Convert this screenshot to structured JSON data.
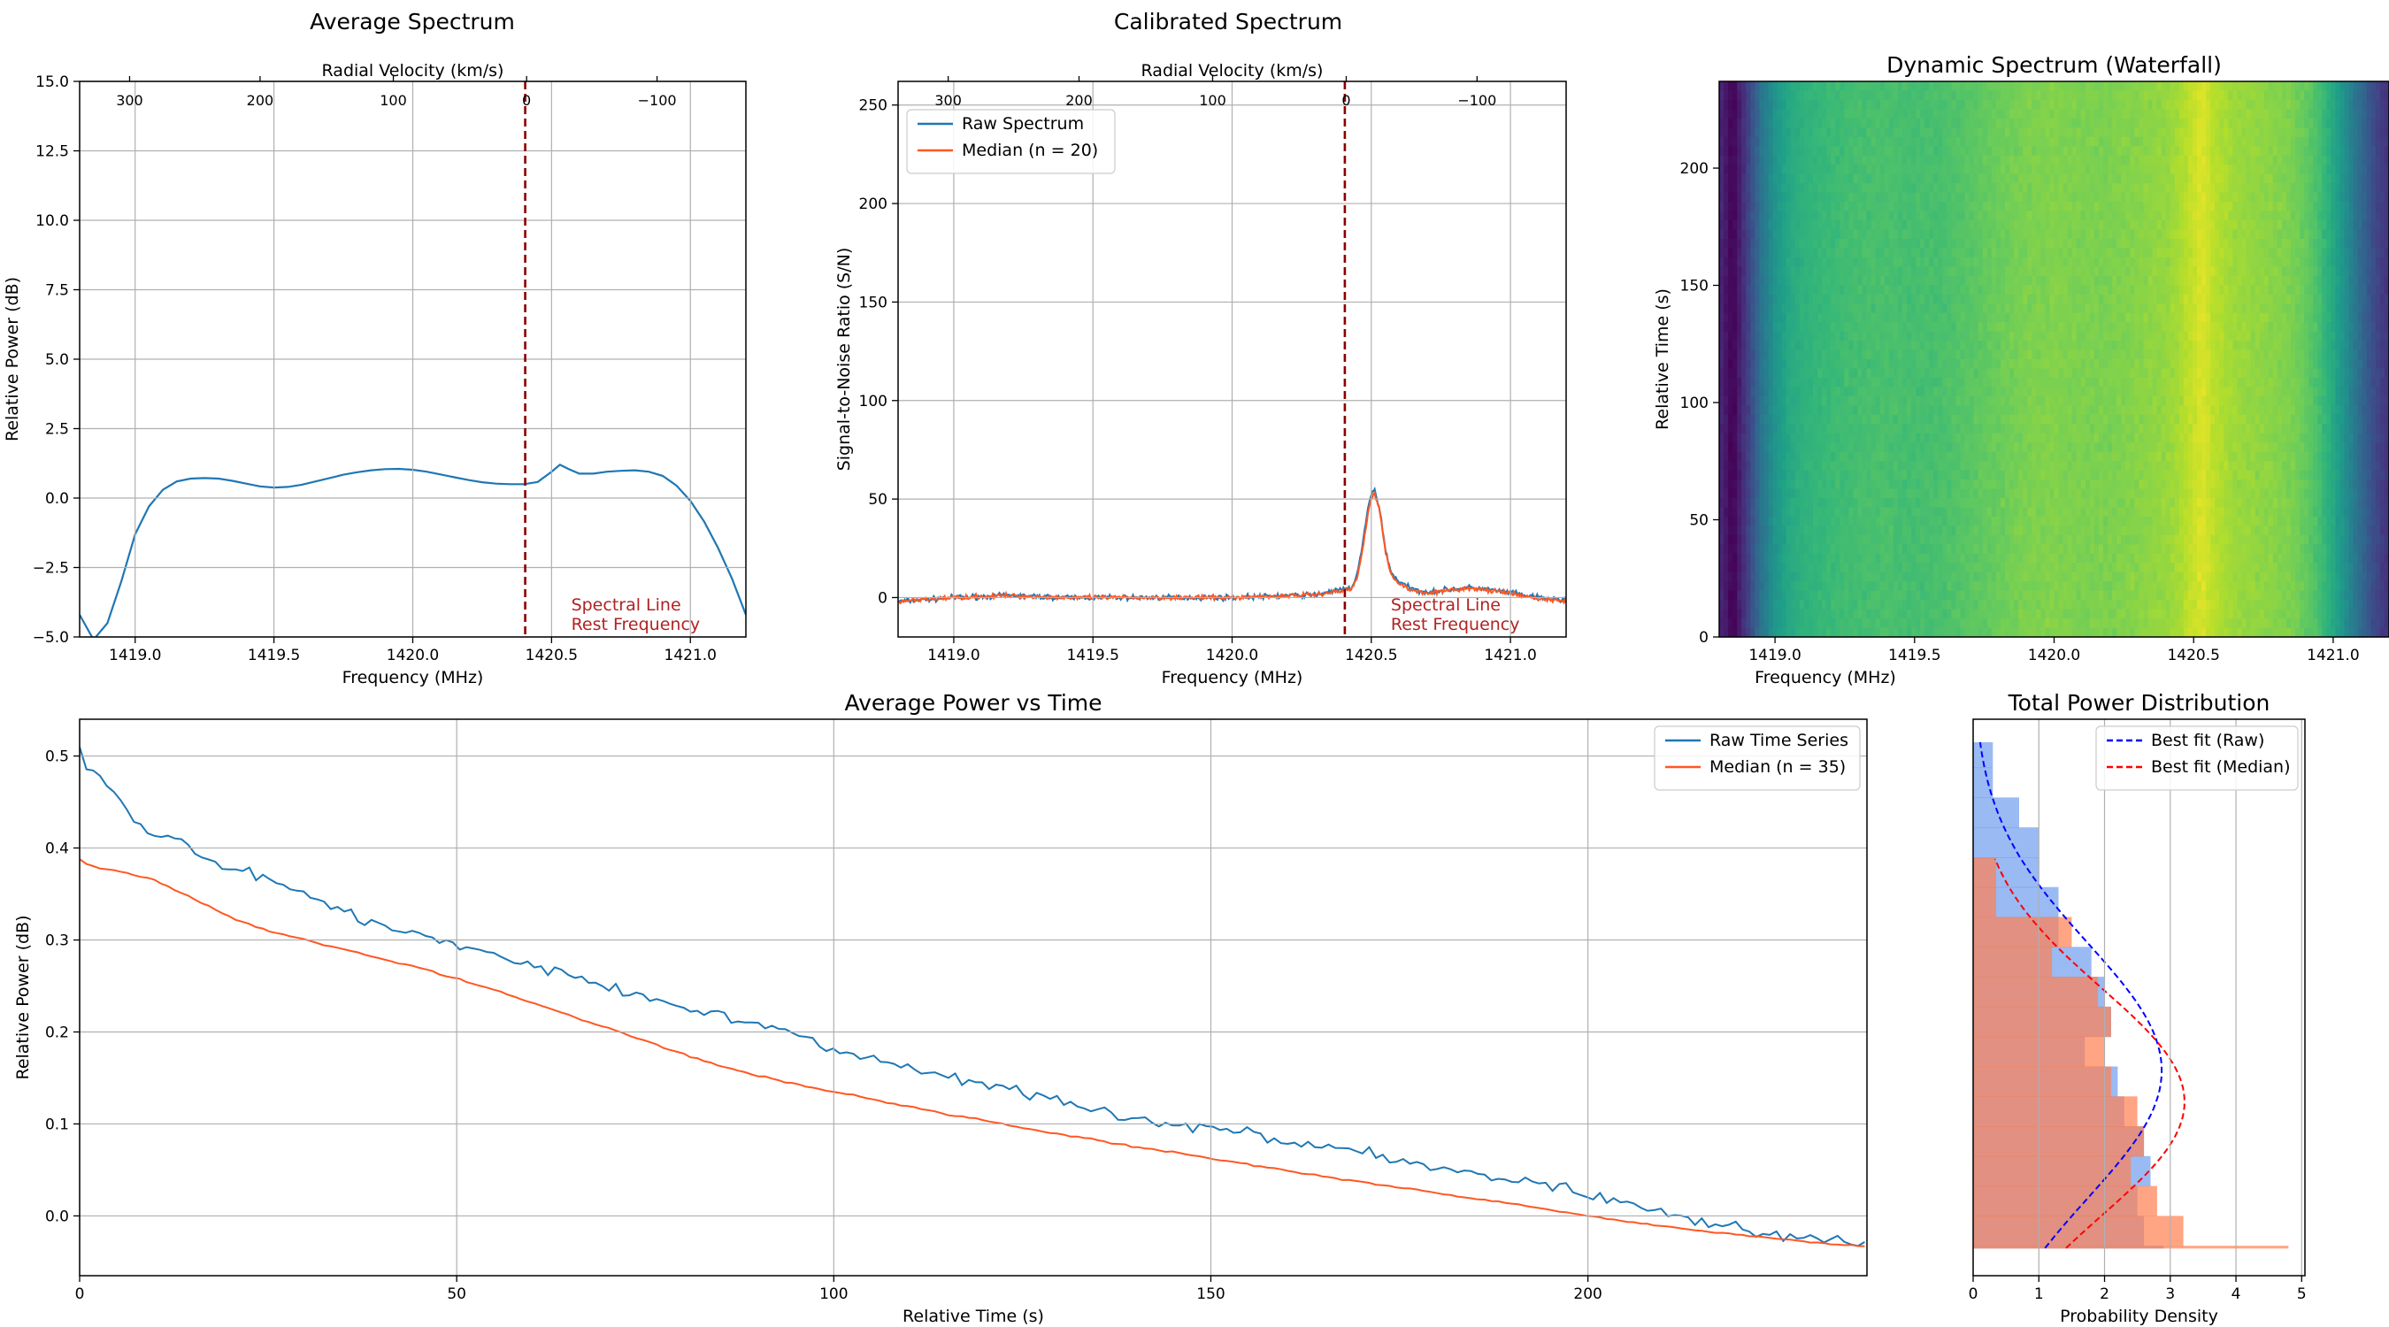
{
  "figure": {
    "panel_titles": {
      "avg": "Average Spectrum",
      "cal": "Calibrated Spectrum",
      "wf": "Dynamic Spectrum (Waterfall)",
      "power": "Average Power vs Time",
      "dist": "Total Power Distribution"
    }
  },
  "chart_data": [
    {
      "id": "avg",
      "type": "line",
      "title": "Average Spectrum",
      "xlabel": "Frequency (MHz)",
      "ylabel": "Relative Power (dB)",
      "top_axis_label": "Radial Velocity (km/s)",
      "xlim": [
        1418.8,
        1421.2
      ],
      "ylim": [
        -5.0,
        15.0
      ],
      "xticks": [
        1419.0,
        1419.5,
        1420.0,
        1420.5,
        1421.0
      ],
      "xtick_labels": [
        "1419.0",
        "1419.5",
        "1420.0",
        "1420.5",
        "1421.0"
      ],
      "yticks": [
        -5.0,
        -2.5,
        0.0,
        2.5,
        5.0,
        7.5,
        10.0,
        12.5,
        15.0
      ],
      "ytick_labels": [
        "−5.0",
        "−2.5",
        "0.0",
        "2.5",
        "5.0",
        "7.5",
        "10.0",
        "12.5",
        "15.0"
      ],
      "top_tick_freqs": [
        1418.98,
        1419.45,
        1419.93,
        1420.41,
        1420.88
      ],
      "top_tick_labels": [
        "300",
        "200",
        "100",
        "0",
        "−100"
      ],
      "grid": true,
      "rest_freq": 1420.405,
      "rest_freq_label": [
        "Spectral Line",
        "Rest Frequency"
      ],
      "series": [
        {
          "color": "#1f77b4",
          "x": [
            1418.8,
            1418.85,
            1418.9,
            1418.95,
            1419.0,
            1419.05,
            1419.1,
            1419.15,
            1419.2,
            1419.25,
            1419.3,
            1419.35,
            1419.4,
            1419.45,
            1419.5,
            1419.55,
            1419.6,
            1419.65,
            1419.7,
            1419.75,
            1419.8,
            1419.85,
            1419.9,
            1419.95,
            1420.0,
            1420.05,
            1420.1,
            1420.15,
            1420.2,
            1420.25,
            1420.3,
            1420.35,
            1420.4,
            1420.45,
            1420.5,
            1420.53,
            1420.56,
            1420.6,
            1420.65,
            1420.7,
            1420.75,
            1420.8,
            1420.85,
            1420.9,
            1420.95,
            1421.0,
            1421.05,
            1421.1,
            1421.15,
            1421.2
          ],
          "y": [
            -4.2,
            -5.1,
            -4.5,
            -3.0,
            -1.3,
            -0.3,
            0.3,
            0.6,
            0.7,
            0.72,
            0.7,
            0.62,
            0.52,
            0.42,
            0.38,
            0.4,
            0.48,
            0.6,
            0.72,
            0.84,
            0.93,
            1.0,
            1.04,
            1.05,
            1.02,
            0.95,
            0.85,
            0.75,
            0.65,
            0.57,
            0.52,
            0.5,
            0.5,
            0.58,
            0.95,
            1.2,
            1.05,
            0.88,
            0.88,
            0.95,
            0.98,
            1.0,
            0.95,
            0.8,
            0.45,
            -0.1,
            -0.85,
            -1.8,
            -2.9,
            -4.2
          ]
        }
      ]
    },
    {
      "id": "cal",
      "type": "line",
      "title": "Calibrated Spectrum",
      "xlabel": "Frequency (MHz)",
      "ylabel": "Signal-to-Noise Ratio (S/N)",
      "top_axis_label": "Radial Velocity (km/s)",
      "xlim": [
        1418.8,
        1421.2
      ],
      "ylim": [
        -20,
        262
      ],
      "xticks": [
        1419.0,
        1419.5,
        1420.0,
        1420.5,
        1421.0
      ],
      "xtick_labels": [
        "1419.0",
        "1419.5",
        "1420.0",
        "1420.5",
        "1421.0"
      ],
      "yticks": [
        0,
        50,
        100,
        150,
        200,
        250
      ],
      "ytick_labels": [
        "0",
        "50",
        "100",
        "150",
        "200",
        "250"
      ],
      "top_tick_freqs": [
        1418.98,
        1419.45,
        1419.93,
        1420.41,
        1420.88
      ],
      "top_tick_labels": [
        "300",
        "200",
        "100",
        "0",
        "−100"
      ],
      "grid": true,
      "legend": "top-left",
      "rest_freq": 1420.405,
      "rest_freq_label": [
        "Spectral Line",
        "Rest Frequency"
      ],
      "series": [
        {
          "name": "Raw Spectrum",
          "color": "#1f77b4",
          "x": [
            1418.8,
            1419.0,
            1419.2,
            1419.4,
            1419.6,
            1419.8,
            1420.0,
            1420.1,
            1420.2,
            1420.3,
            1420.35,
            1420.4,
            1420.43,
            1420.45,
            1420.47,
            1420.49,
            1420.51,
            1420.53,
            1420.55,
            1420.57,
            1420.6,
            1420.65,
            1420.7,
            1420.75,
            1420.8,
            1420.85,
            1420.9,
            1420.95,
            1421.0,
            1421.05,
            1421.1,
            1421.2
          ],
          "y": [
            -2,
            0,
            1,
            0,
            0,
            0,
            0,
            0.5,
            1,
            1.5,
            3,
            4,
            5,
            12,
            28,
            47,
            56,
            45,
            25,
            13,
            8,
            4,
            3,
            3.5,
            4.5,
            5,
            4.5,
            3.5,
            2.5,
            1,
            0,
            -1.5
          ]
        },
        {
          "name": "Median (n = 20)",
          "color": "#ff5722",
          "x": [
            1418.8,
            1419.0,
            1419.2,
            1419.4,
            1419.6,
            1419.8,
            1420.0,
            1420.1,
            1420.2,
            1420.3,
            1420.35,
            1420.4,
            1420.43,
            1420.45,
            1420.47,
            1420.49,
            1420.51,
            1420.53,
            1420.55,
            1420.57,
            1420.6,
            1420.65,
            1420.7,
            1420.75,
            1420.8,
            1420.85,
            1420.9,
            1420.95,
            1421.0,
            1421.05,
            1421.1,
            1421.2
          ],
          "y": [
            -2,
            0,
            1,
            0,
            0,
            0,
            0,
            0.5,
            1,
            1.5,
            2.5,
            3.5,
            4.5,
            10,
            26,
            45,
            54,
            44,
            24,
            12,
            7,
            3.5,
            2.5,
            3,
            4,
            4.5,
            4,
            3,
            2,
            0.5,
            -0.5,
            -2
          ]
        }
      ]
    },
    {
      "id": "wf",
      "type": "heatmap",
      "title": "Dynamic Spectrum (Waterfall)",
      "xlabel": "Frequency (MHz)",
      "ylabel": "Relative Time (s)",
      "xlim": [
        1418.8,
        1421.2
      ],
      "ylim": [
        0,
        237
      ],
      "xticks": [
        1419.0,
        1419.5,
        1420.0,
        1420.5,
        1421.0
      ],
      "xtick_labels": [
        "1419.0",
        "1419.5",
        "1420.0",
        "1420.5",
        "1421.0"
      ],
      "yticks": [
        0,
        50,
        100,
        150,
        200
      ],
      "ytick_labels": [
        "0",
        "50",
        "100",
        "150",
        "200"
      ],
      "grid": false,
      "colormap": "viridis",
      "profile": {
        "freq": [
          1418.8,
          1418.85,
          1418.9,
          1418.95,
          1419.0,
          1419.05,
          1419.1,
          1419.2,
          1419.3,
          1419.4,
          1419.5,
          1419.6,
          1419.7,
          1419.8,
          1419.9,
          1420.0,
          1420.1,
          1420.2,
          1420.3,
          1420.4,
          1420.45,
          1420.5,
          1420.53,
          1420.57,
          1420.65,
          1420.75,
          1420.85,
          1420.9,
          1420.95,
          1421.0,
          1421.05,
          1421.1,
          1421.15,
          1421.2
        ],
        "level": [
          0.12,
          0.0,
          0.18,
          0.38,
          0.52,
          0.6,
          0.64,
          0.68,
          0.7,
          0.71,
          0.7,
          0.71,
          0.74,
          0.77,
          0.8,
          0.81,
          0.8,
          0.8,
          0.82,
          0.84,
          0.87,
          0.92,
          0.95,
          0.9,
          0.85,
          0.83,
          0.8,
          0.76,
          0.7,
          0.6,
          0.48,
          0.34,
          0.22,
          0.14
        ]
      }
    },
    {
      "id": "power",
      "type": "line",
      "title": "Average Power vs Time",
      "xlabel": "Relative Time (s)",
      "ylabel": "Relative Power (dB)",
      "xlim": [
        0,
        237
      ],
      "ylim": [
        -0.065,
        0.54
      ],
      "xticks": [
        0,
        50,
        100,
        150,
        200
      ],
      "xtick_labels": [
        "0",
        "50",
        "100",
        "150",
        "200"
      ],
      "yticks": [
        0.0,
        0.1,
        0.2,
        0.3,
        0.4,
        0.5
      ],
      "ytick_labels": [
        "0.0",
        "0.1",
        "0.2",
        "0.3",
        "0.4",
        "0.5"
      ],
      "grid": true,
      "legend": "top-right",
      "series": [
        {
          "name": "Raw Time Series",
          "color": "#1f77b4",
          "x": [
            0,
            1,
            2,
            3,
            5,
            7,
            10,
            13,
            15,
            18,
            20,
            25,
            30,
            35,
            40,
            45,
            50,
            55,
            60,
            65,
            70,
            75,
            80,
            85,
            90,
            95,
            100,
            105,
            110,
            115,
            120,
            125,
            130,
            135,
            140,
            145,
            150,
            155,
            160,
            165,
            170,
            175,
            180,
            185,
            190,
            195,
            200,
            205,
            210,
            215,
            220,
            225,
            230,
            235,
            237
          ],
          "y": [
            0.515,
            0.48,
            0.49,
            0.47,
            0.46,
            0.43,
            0.415,
            0.41,
            0.395,
            0.385,
            0.38,
            0.365,
            0.35,
            0.33,
            0.315,
            0.305,
            0.295,
            0.285,
            0.27,
            0.262,
            0.25,
            0.24,
            0.228,
            0.22,
            0.21,
            0.195,
            0.18,
            0.17,
            0.16,
            0.15,
            0.145,
            0.135,
            0.125,
            0.115,
            0.105,
            0.1,
            0.095,
            0.09,
            0.08,
            0.075,
            0.07,
            0.06,
            0.055,
            0.045,
            0.04,
            0.032,
            0.025,
            0.015,
            0.005,
            -0.005,
            -0.012,
            -0.02,
            -0.025,
            -0.03,
            -0.032
          ]
        },
        {
          "name": "Median (n = 35)",
          "color": "#ff5722",
          "x": [
            0,
            1,
            3,
            5,
            10,
            15,
            20,
            25,
            30,
            35,
            40,
            45,
            50,
            55,
            60,
            65,
            70,
            75,
            80,
            85,
            90,
            95,
            100,
            105,
            110,
            115,
            120,
            125,
            130,
            135,
            140,
            145,
            150,
            155,
            160,
            165,
            170,
            175,
            180,
            185,
            190,
            195,
            200,
            205,
            210,
            215,
            220,
            225,
            230,
            235,
            237
          ],
          "y": [
            0.388,
            0.382,
            0.378,
            0.375,
            0.365,
            0.345,
            0.325,
            0.31,
            0.3,
            0.29,
            0.28,
            0.27,
            0.258,
            0.245,
            0.232,
            0.218,
            0.204,
            0.19,
            0.176,
            0.163,
            0.152,
            0.143,
            0.135,
            0.127,
            0.119,
            0.111,
            0.104,
            0.096,
            0.089,
            0.082,
            0.075,
            0.069,
            0.063,
            0.056,
            0.049,
            0.043,
            0.037,
            0.031,
            0.025,
            0.019,
            0.013,
            0.007,
            0.0,
            -0.006,
            -0.011,
            -0.016,
            -0.021,
            -0.025,
            -0.029,
            -0.032,
            -0.033
          ]
        }
      ]
    },
    {
      "id": "dist",
      "type": "bar",
      "orientation": "horizontal",
      "title": "Total Power Distribution",
      "xlabel": "Probability Density",
      "ylabel": "",
      "xlim": [
        0,
        5.05
      ],
      "ylim": [
        -0.065,
        0.54
      ],
      "xticks": [
        0,
        1,
        2,
        3,
        4,
        5
      ],
      "xtick_labels": [
        "0",
        "1",
        "2",
        "3",
        "4",
        "5"
      ],
      "grid": true,
      "legend": "top-right",
      "histograms": [
        {
          "name": "Raw",
          "color": "#6495ed",
          "bin_edges": [
            -0.035,
            -0.0325,
            0.0,
            0.0325,
            0.065,
            0.0975,
            0.13,
            0.1625,
            0.195,
            0.2275,
            0.26,
            0.2925,
            0.325,
            0.3575,
            0.39,
            0.4225,
            0.455,
            0.4875,
            0.515
          ],
          "density": [
            2.9,
            2.6,
            2.5,
            2.7,
            2.6,
            2.3,
            2.2,
            1.7,
            2.1,
            2.0,
            1.8,
            1.3,
            1.3,
            1.0,
            1.0,
            0.7,
            0.3,
            0.3
          ]
        },
        {
          "name": "Median",
          "color": "#ff7f50",
          "bin_edges": [
            -0.035,
            -0.0325,
            0.0,
            0.0325,
            0.065,
            0.0975,
            0.13,
            0.1625,
            0.195,
            0.2275,
            0.26,
            0.2925,
            0.325,
            0.3575,
            0.39
          ],
          "density": [
            4.8,
            3.2,
            2.8,
            2.4,
            2.6,
            2.5,
            2.1,
            2.0,
            2.1,
            1.9,
            1.2,
            1.5,
            0.35,
            0.35
          ]
        }
      ],
      "series": [
        {
          "name": "Best fit (Raw)",
          "color": "#0000ff",
          "dash": true,
          "mean": 0.158,
          "std": 0.139,
          "y_range": [
            -0.035,
            0.515
          ]
        },
        {
          "name": "Best fit (Median)",
          "color": "#ff0000",
          "dash": true,
          "mean": 0.124,
          "std": 0.124,
          "y_range": [
            -0.035,
            0.388
          ]
        }
      ]
    }
  ]
}
